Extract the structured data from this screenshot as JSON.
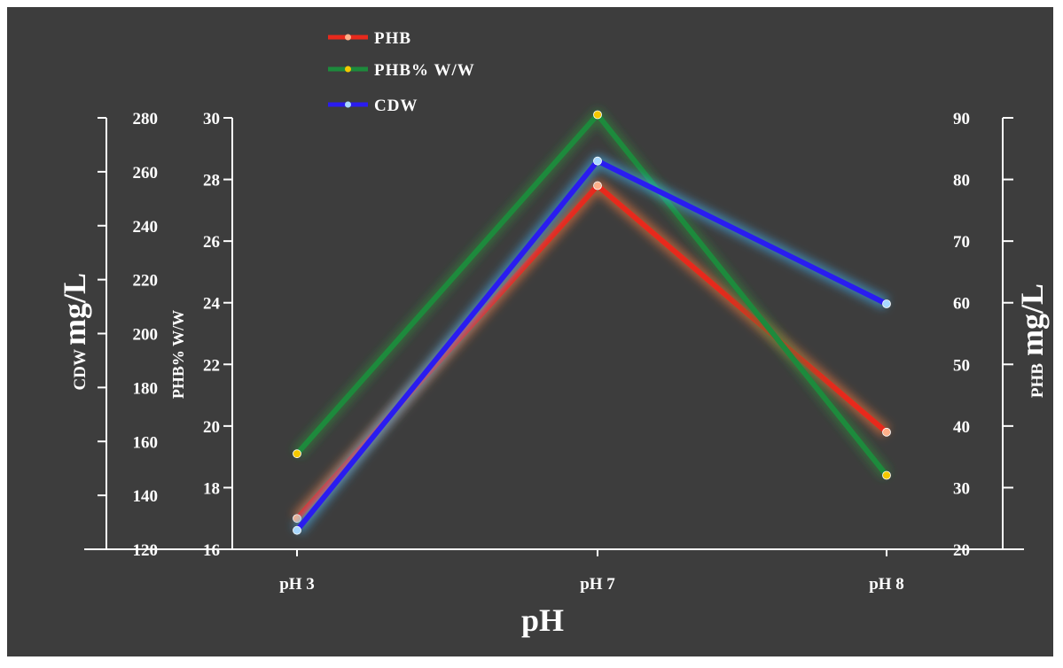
{
  "chart_data": {
    "type": "line",
    "categories": [
      "pH 3",
      "pH 7",
      "pH 8"
    ],
    "xlabel": "pH",
    "axes": {
      "cdw": {
        "label_prefix": "CDW",
        "label_main": "mg/L",
        "range": [
          120,
          280
        ],
        "ticks": [
          120,
          140,
          160,
          180,
          200,
          220,
          240,
          260,
          280
        ]
      },
      "phb_pct": {
        "label": "PHB% W/W",
        "range": [
          16,
          30
        ],
        "ticks": [
          16,
          18,
          20,
          22,
          24,
          26,
          28,
          30
        ]
      },
      "phb": {
        "label_prefix": "PHB",
        "label_main": "mg/L",
        "range": [
          20,
          90
        ],
        "ticks": [
          20,
          30,
          40,
          50,
          60,
          70,
          80,
          90
        ]
      }
    },
    "series": [
      {
        "name": "PHB",
        "axis": "phb",
        "values": [
          25,
          79,
          39
        ],
        "color": "#e8291c",
        "glow": "#ff7a3a",
        "marker": "#ffb08a"
      },
      {
        "name": "PHB% W/W",
        "axis": "phb_pct",
        "values": [
          19.1,
          30.1,
          18.4
        ],
        "color": "#1d8a3c",
        "glow": "#2d8a3c",
        "marker": "#f5c800"
      },
      {
        "name": "CDW",
        "axis": "cdw",
        "values": [
          127,
          264,
          211
        ],
        "color": "#2a1cf0",
        "glow": "#3fb8ff",
        "marker": "#a8d8ff"
      }
    ],
    "legend_position": "top-center",
    "colors": {
      "background": "#3d3d3d",
      "axis": "#ffffff",
      "text": "#ffffff"
    }
  }
}
